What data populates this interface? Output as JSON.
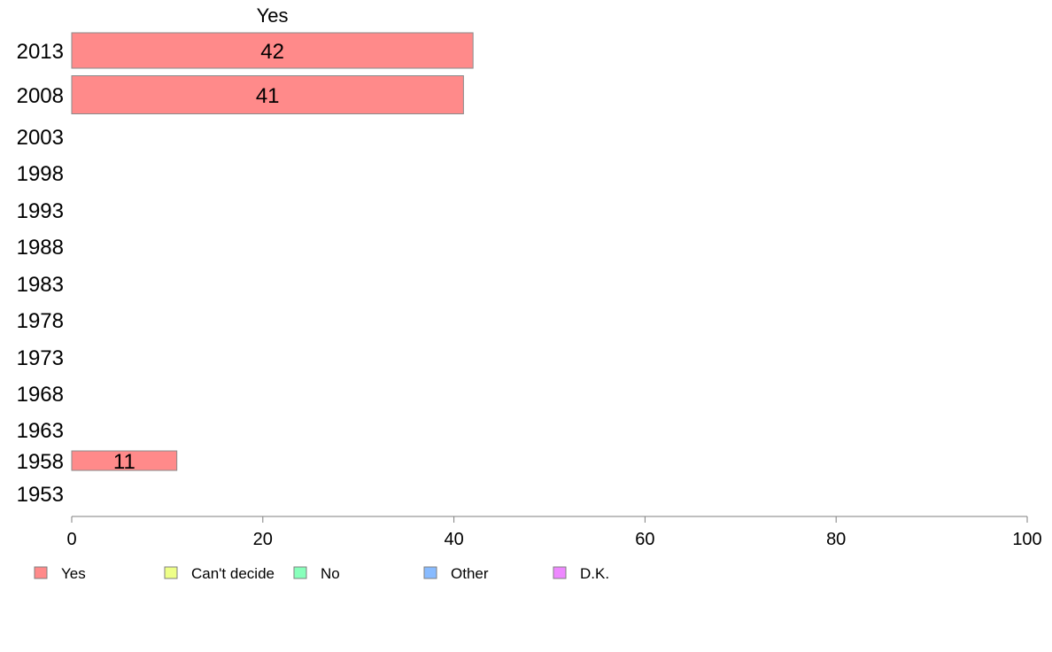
{
  "chart_data": {
    "type": "bar",
    "orientation": "horizontal",
    "stacked": true,
    "column_header": "Yes",
    "categories": [
      "2013",
      "2008",
      "2003",
      "1998",
      "1993",
      "1988",
      "1983",
      "1978",
      "1973",
      "1968",
      "1963",
      "1958",
      "1953"
    ],
    "series": [
      {
        "name": "Yes",
        "color": "#ff8a8a",
        "values": [
          42,
          41,
          null,
          null,
          null,
          null,
          null,
          null,
          null,
          null,
          null,
          11,
          null
        ]
      },
      {
        "name": "Can't decide",
        "color": "#eeff88",
        "values": [
          null,
          null,
          null,
          null,
          null,
          null,
          null,
          null,
          null,
          null,
          null,
          null,
          null
        ]
      },
      {
        "name": "No",
        "color": "#88ffbb",
        "values": [
          null,
          null,
          null,
          null,
          null,
          null,
          null,
          null,
          null,
          null,
          null,
          null,
          null
        ]
      },
      {
        "name": "Other",
        "color": "#88bbff",
        "values": [
          null,
          null,
          null,
          null,
          null,
          null,
          null,
          null,
          null,
          null,
          null,
          null,
          null
        ]
      },
      {
        "name": "D.K.",
        "color": "#ee88ff",
        "values": [
          null,
          null,
          null,
          null,
          null,
          null,
          null,
          null,
          null,
          null,
          null,
          null,
          null
        ]
      }
    ],
    "xlim": [
      0,
      100
    ],
    "x_ticks": [
      0,
      20,
      40,
      60,
      80,
      100
    ],
    "grid": false,
    "legend_position": "bottom"
  }
}
